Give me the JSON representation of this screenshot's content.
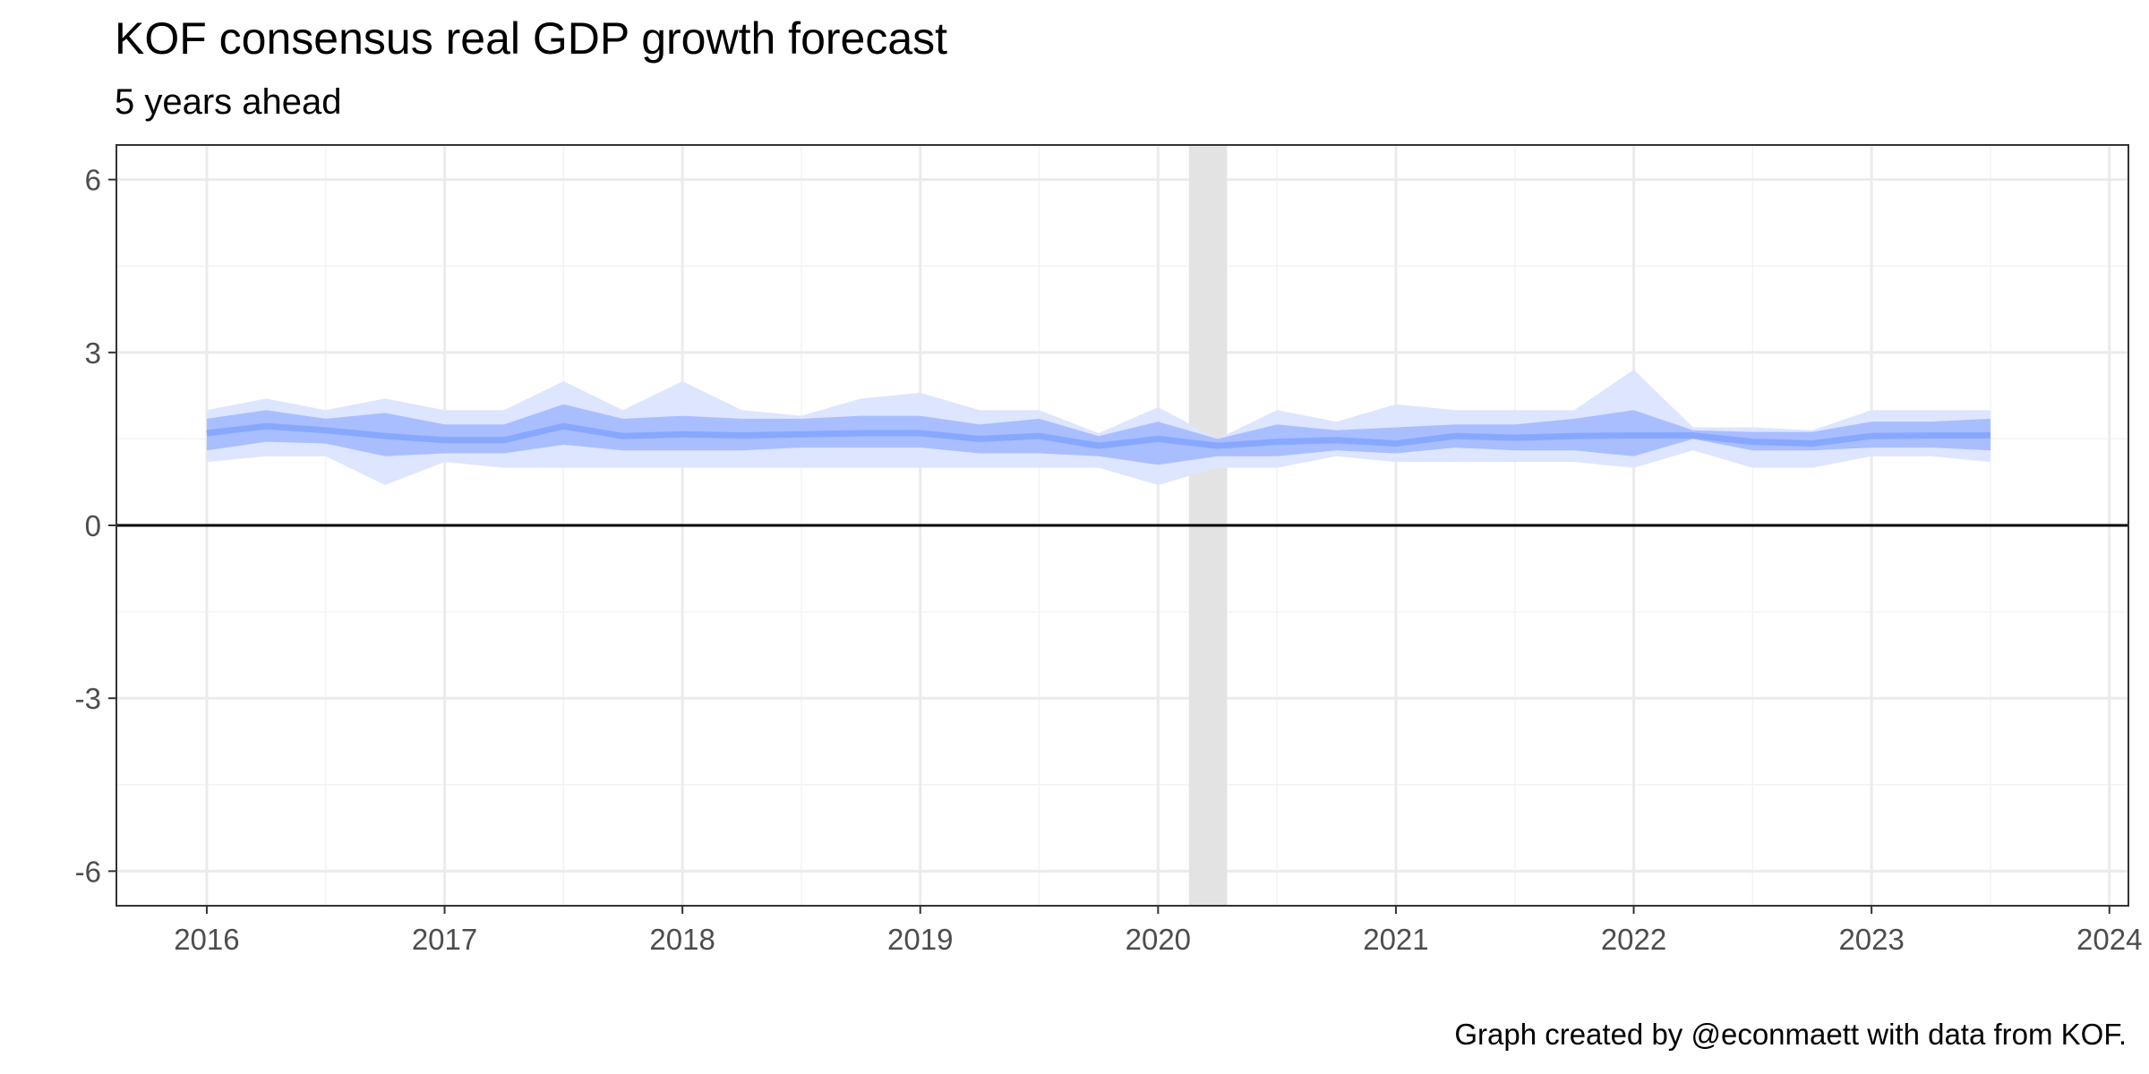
{
  "chart_data": {
    "type": "line",
    "title": "KOF consensus real GDP growth forecast",
    "subtitle": "5 years ahead",
    "caption": "Graph created by @econmaett with data from KOF.",
    "xlabel": "",
    "ylabel": "",
    "xlim": [
      2015.62,
      2024.08
    ],
    "ylim": [
      -6.6,
      6.6
    ],
    "x_ticks": [
      2016,
      2017,
      2018,
      2019,
      2020,
      2021,
      2022,
      2023,
      2024
    ],
    "x_tick_labels": [
      "2016",
      "2017",
      "2018",
      "2019",
      "2020",
      "2021",
      "2022",
      "2023",
      "2024"
    ],
    "y_ticks": [
      6,
      3,
      0,
      -3,
      -6
    ],
    "y_tick_labels": [
      "6",
      "3",
      "0",
      "-3",
      "-6"
    ],
    "grid": true,
    "zero_line": true,
    "recession_shading": {
      "start": 2020.13,
      "end": 2020.29
    },
    "x": [
      2016.0,
      2016.25,
      2016.5,
      2016.75,
      2017.0,
      2017.25,
      2017.5,
      2017.75,
      2018.0,
      2018.25,
      2018.5,
      2018.75,
      2019.0,
      2019.25,
      2019.5,
      2019.75,
      2020.0,
      2020.25,
      2020.5,
      2020.75,
      2021.0,
      2021.25,
      2021.5,
      2021.75,
      2022.0,
      2022.25,
      2022.5,
      2022.75,
      2023.0,
      2023.25,
      2023.5
    ],
    "series": [
      {
        "role": "median",
        "values": [
          1.6,
          1.72,
          1.65,
          1.55,
          1.48,
          1.48,
          1.72,
          1.55,
          1.58,
          1.56,
          1.58,
          1.6,
          1.6,
          1.5,
          1.55,
          1.38,
          1.5,
          1.38,
          1.45,
          1.48,
          1.42,
          1.55,
          1.52,
          1.55,
          1.56,
          1.56,
          1.45,
          1.42,
          1.55,
          1.56,
          1.56
        ]
      },
      {
        "role": "inner_band",
        "lower": [
          1.3,
          1.45,
          1.42,
          1.2,
          1.25,
          1.25,
          1.4,
          1.3,
          1.3,
          1.3,
          1.35,
          1.35,
          1.35,
          1.25,
          1.25,
          1.2,
          1.05,
          1.2,
          1.2,
          1.3,
          1.25,
          1.35,
          1.3,
          1.3,
          1.2,
          1.5,
          1.3,
          1.3,
          1.35,
          1.35,
          1.3
        ],
        "upper": [
          1.85,
          2.0,
          1.85,
          1.95,
          1.75,
          1.75,
          2.1,
          1.85,
          1.9,
          1.85,
          1.85,
          1.9,
          1.9,
          1.75,
          1.85,
          1.55,
          1.8,
          1.5,
          1.75,
          1.65,
          1.7,
          1.75,
          1.75,
          1.85,
          2.0,
          1.65,
          1.62,
          1.62,
          1.8,
          1.8,
          1.85
        ]
      },
      {
        "role": "outer_band",
        "lower": [
          1.1,
          1.2,
          1.2,
          0.7,
          1.1,
          1.0,
          1.0,
          1.0,
          1.0,
          1.0,
          1.0,
          1.0,
          1.0,
          1.0,
          1.0,
          1.0,
          0.7,
          1.0,
          1.0,
          1.2,
          1.1,
          1.1,
          1.1,
          1.1,
          1.0,
          1.3,
          1.0,
          1.0,
          1.2,
          1.2,
          1.1
        ],
        "upper": [
          2.0,
          2.2,
          2.0,
          2.2,
          2.0,
          2.0,
          2.5,
          2.0,
          2.5,
          2.0,
          1.9,
          2.2,
          2.3,
          2.0,
          2.0,
          1.6,
          2.05,
          1.5,
          2.0,
          1.8,
          2.1,
          2.0,
          2.0,
          2.0,
          2.7,
          1.7,
          1.7,
          1.65,
          2.0,
          2.0,
          2.0
        ]
      }
    ],
    "colors": {
      "median": "#88a8ff",
      "inner_band": "#a9beff",
      "outer_band": "#dde5ff",
      "recession": "#e3e3e3",
      "grid_major": "#ebebeb",
      "grid_minor": "#f3f3f3",
      "zero_line": "#000000",
      "panel_border": "#333333",
      "tick_text": "#4d4d4d"
    }
  }
}
